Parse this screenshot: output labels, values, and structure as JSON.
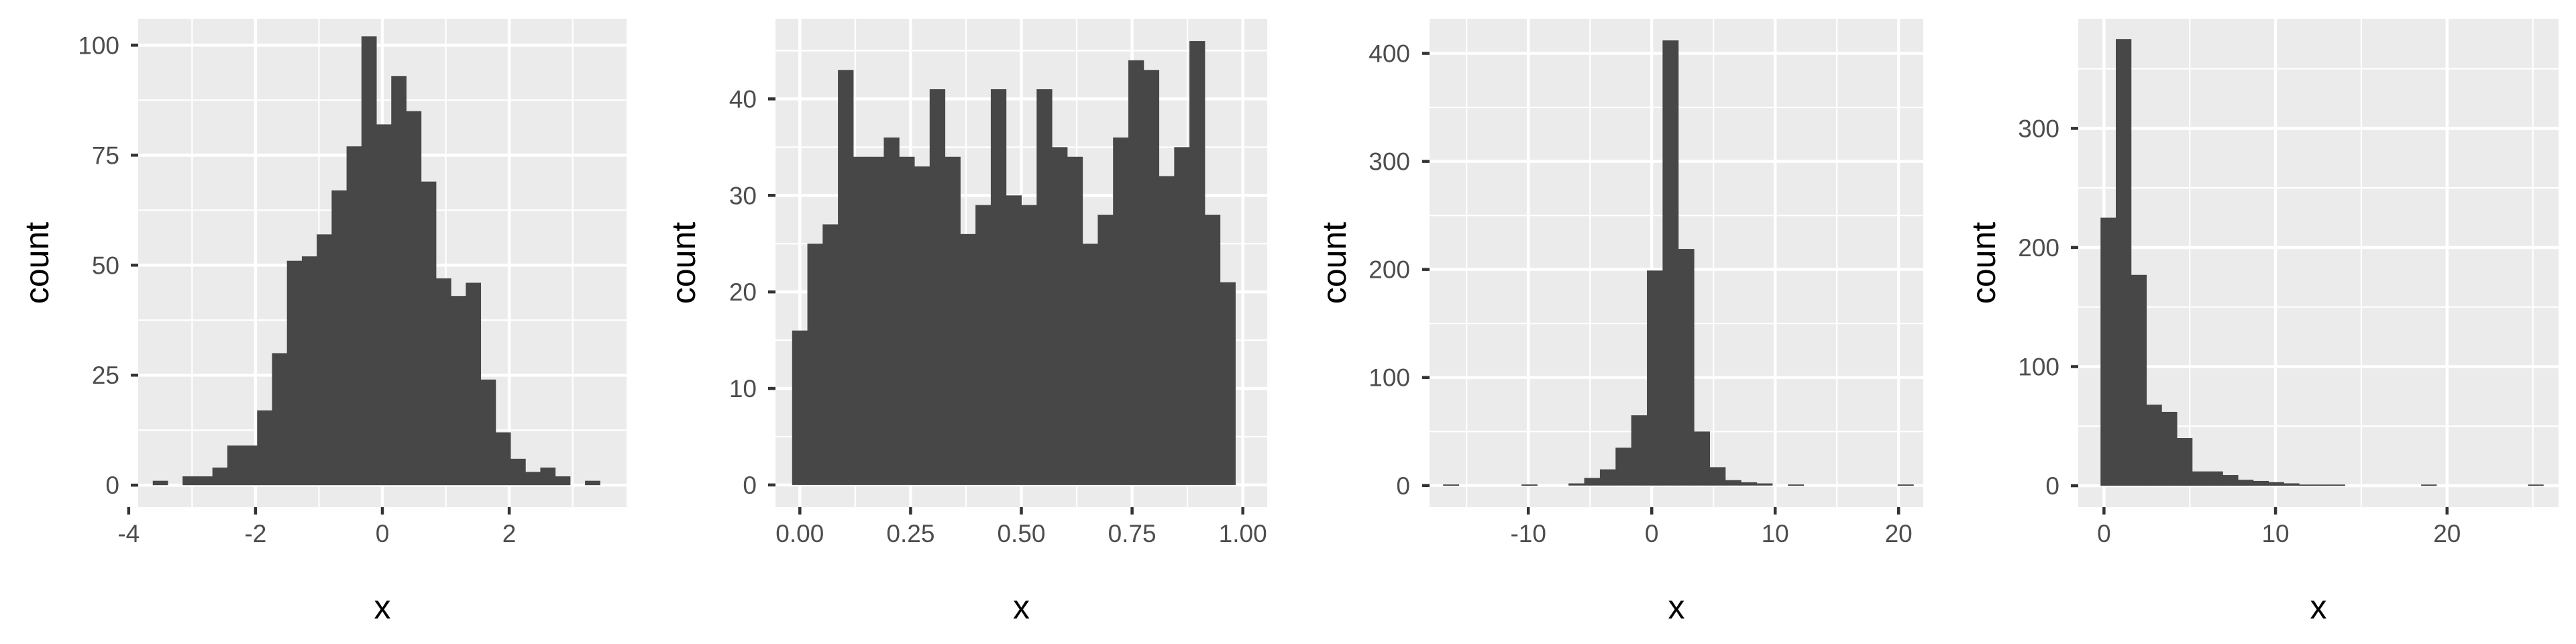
{
  "chart_data": [
    {
      "type": "bar",
      "xlabel": "x",
      "ylabel": "count",
      "xlim": [
        -3.85,
        3.85
      ],
      "ylim": [
        -5,
        106
      ],
      "xticks": [
        -4,
        -2,
        0,
        2
      ],
      "xtick_labels": [
        "-4",
        "-2",
        "0",
        "2"
      ],
      "yticks": [
        0,
        25,
        50,
        75,
        100
      ],
      "ytick_labels": [
        "0",
        "25",
        "50",
        "75",
        "100"
      ],
      "grid": true,
      "bins_start": -3.62,
      "bin_width": 0.235,
      "counts": [
        1,
        0,
        2,
        2,
        4,
        9,
        9,
        17,
        30,
        51,
        52,
        57,
        67,
        77,
        102,
        82,
        93,
        85,
        69,
        47,
        43,
        46,
        24,
        12,
        6,
        3,
        4,
        2,
        0,
        1
      ]
    },
    {
      "type": "bar",
      "xlabel": "x",
      "ylabel": "count",
      "xlim": [
        -0.055,
        1.055
      ],
      "ylim": [
        -2.3,
        48.3
      ],
      "xticks": [
        0.0,
        0.25,
        0.5,
        0.75,
        1.0
      ],
      "xtick_labels": [
        "0.00",
        "0.25",
        "0.50",
        "0.75",
        "1.00"
      ],
      "yticks": [
        0,
        10,
        20,
        30,
        40
      ],
      "ytick_labels": [
        "0",
        "10",
        "20",
        "30",
        "40"
      ],
      "grid": true,
      "bins_start": -0.0175,
      "bin_width": 0.0345,
      "counts": [
        16,
        25,
        27,
        43,
        34,
        34,
        36,
        34,
        33,
        41,
        34,
        26,
        29,
        41,
        30,
        29,
        41,
        35,
        34,
        25,
        28,
        36,
        44,
        43,
        32,
        35,
        46,
        28,
        21
      ]
    },
    {
      "type": "bar",
      "xlabel": "x",
      "ylabel": "count",
      "xlim": [
        -18.0,
        22.0
      ],
      "ylim": [
        -20,
        432
      ],
      "xticks": [
        -10,
        0,
        10,
        20
      ],
      "xtick_labels": [
        "-10",
        "0",
        "10",
        "20"
      ],
      "yticks": [
        0,
        100,
        200,
        300,
        400
      ],
      "ytick_labels": [
        "0",
        "100",
        "200",
        "300",
        "400"
      ],
      "grid": true,
      "bins_start": -16.9,
      "bin_width": 1.27,
      "counts": [
        1,
        0,
        0,
        0,
        0,
        1,
        0,
        0,
        2,
        7,
        15,
        35,
        65,
        199,
        412,
        219,
        50,
        17,
        5,
        3,
        2,
        0,
        1,
        0,
        0,
        0,
        0,
        0,
        0,
        1
      ]
    },
    {
      "type": "bar",
      "xlabel": "x",
      "ylabel": "count",
      "xlim": [
        -1.5,
        26.5
      ],
      "ylim": [
        -18,
        392
      ],
      "xticks": [
        0,
        10,
        20
      ],
      "xtick_labels": [
        "0",
        "10",
        "20"
      ],
      "yticks": [
        0,
        100,
        200,
        300
      ],
      "ytick_labels": [
        "0",
        "100",
        "200",
        "300"
      ],
      "grid": true,
      "bins_start": -0.2,
      "bin_width": 0.89,
      "counts": [
        225,
        375,
        177,
        68,
        62,
        40,
        12,
        12,
        9,
        5,
        4,
        3,
        2,
        1,
        1,
        1,
        0,
        0,
        0,
        0,
        0,
        1,
        0,
        0,
        0,
        0,
        0,
        0,
        1
      ]
    }
  ]
}
